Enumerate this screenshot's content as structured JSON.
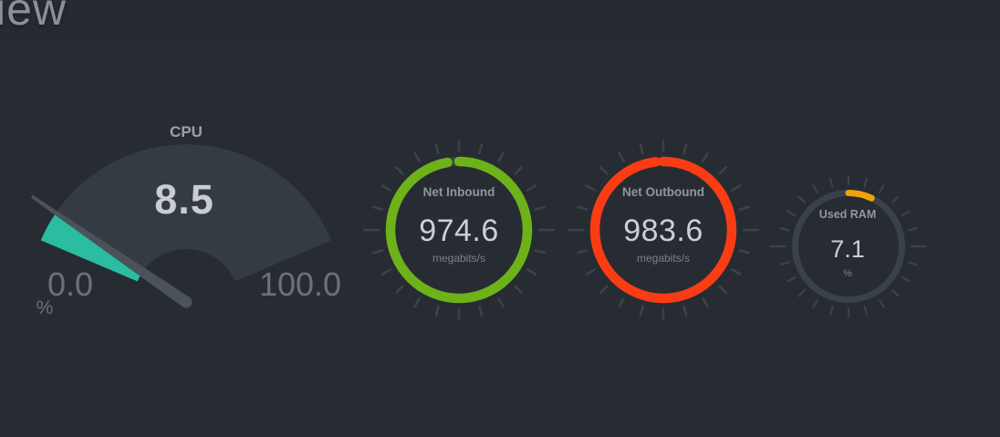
{
  "header": {
    "title_partial": "iew"
  },
  "colors": {
    "background": "#272c33",
    "header_band": "#26292f",
    "gauge_fan": "#343b42",
    "gauge_track": "#3a4148",
    "needle": "#4b525a",
    "tick": "#3b424a",
    "cpu_accent": "#2abda2",
    "inbound_accent": "#6eb219",
    "outbound_accent": "#fa3c14",
    "ram_accent": "#f0a40a"
  },
  "chart_data": [
    {
      "type": "gauge-half",
      "title": "CPU",
      "value": "8.5",
      "unit": "%",
      "min_label": "0.0",
      "max_label": "100.0",
      "fill_fraction": 0.085,
      "color": "#2abda2"
    },
    {
      "type": "gauge-circle",
      "title": "Net Inbound",
      "value": "974.6",
      "unit": "megabits/s",
      "fill_fraction": 0.9746,
      "color": "#6eb219"
    },
    {
      "type": "gauge-circle",
      "title": "Net Outbound",
      "value": "983.6",
      "unit": "megabits/s",
      "fill_fraction": 0.9836,
      "color": "#fa3c14"
    },
    {
      "type": "gauge-circle",
      "title": "Used RAM",
      "value": "7.1",
      "unit": "%",
      "fill_fraction": 0.071,
      "color": "#f0a40a"
    }
  ]
}
